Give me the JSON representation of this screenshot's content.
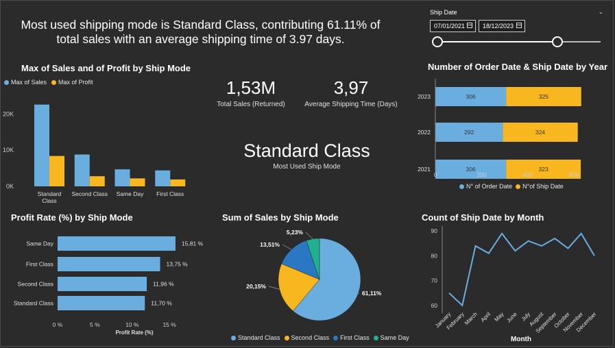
{
  "headline": "Most used shipping mode is Standard Class, contributing 61.11% of total sales with an average shipping time of 3.97 days.",
  "colors": {
    "blue": "#6aaee0",
    "orange": "#f8b71e",
    "darkblue": "#2a78c2",
    "teal": "#1fb08f",
    "bg": "#2b2b2b"
  },
  "slicer": {
    "label": "Ship Date",
    "start": "07/01/2021",
    "end": "18/12/2023",
    "chevron_icon": "chevron-down-icon",
    "calendar_icon": "calendar-icon"
  },
  "kpis": {
    "sales_value": "1,53M",
    "sales_label": "Total Sales (Returned)",
    "ship_time_value": "3,97",
    "ship_time_label": "Average Shipping Time (Days)",
    "mode_value": "Standard Class",
    "mode_label": "Most Used Ship Mode"
  },
  "chart_data": [
    {
      "id": "max_sales_profit",
      "type": "bar",
      "title": "Max of Sales and of Profit by Ship Mode",
      "categories": [
        "Standard Class",
        "Second Class",
        "Same Day",
        "First Class"
      ],
      "series": [
        {
          "name": "Max of Sales",
          "values": [
            22600,
            8800,
            4700,
            4400
          ],
          "color": "#6aaee0"
        },
        {
          "name": "Max of Profit",
          "values": [
            8400,
            2800,
            2200,
            1900
          ],
          "color": "#f8b71e"
        }
      ],
      "ylim": [
        0,
        25000
      ],
      "yticks": [
        0,
        10000,
        20000
      ],
      "ytick_labels": [
        "0K",
        "10K",
        "20K"
      ],
      "legend": "top-left"
    },
    {
      "id": "order_ship_by_year",
      "type": "bar",
      "orientation": "horizontal-stacked",
      "title": "Number of Order Date & Ship Date by Year",
      "categories": [
        "2023",
        "2022",
        "2021"
      ],
      "series": [
        {
          "name": "N° of Order Date",
          "values": [
            306,
            292,
            306
          ],
          "color": "#6aaee0"
        },
        {
          "name": "N°of Ship Date",
          "values": [
            325,
            324,
            323
          ],
          "color": "#f8b71e"
        }
      ],
      "xlim": [
        0,
        700
      ],
      "xticks": [
        0,
        200,
        400,
        600
      ],
      "legend": "bottom"
    },
    {
      "id": "profit_rate",
      "type": "bar",
      "orientation": "horizontal",
      "title": "Profit Rate (%) by Ship Mode",
      "categories": [
        "Same Day",
        "First Class",
        "Second Class",
        "Standard Class"
      ],
      "values": [
        15.81,
        13.75,
        11.96,
        11.7
      ],
      "value_labels": [
        "15,81 %",
        "13,75 %",
        "11,96 %",
        "11,70 %"
      ],
      "xlim": [
        0,
        16
      ],
      "xticks": [
        0,
        5,
        10,
        15
      ],
      "xtick_labels": [
        "0 %",
        "5 %",
        "10 %",
        "15 %"
      ],
      "xlabel": "Profit Rate (%)",
      "color": "#6aaee0"
    },
    {
      "id": "sales_share",
      "type": "pie",
      "title": "Sum of Sales by Ship Mode",
      "labels": [
        "Standard Class",
        "Second Class",
        "First Class",
        "Same Day"
      ],
      "values": [
        61.11,
        20.15,
        13.51,
        5.23
      ],
      "value_labels": [
        "61,11%",
        "20,15%",
        "13,51%",
        "5,23%"
      ],
      "colors": [
        "#6aaee0",
        "#f8b71e",
        "#2a78c2",
        "#1fb08f"
      ],
      "legend": "bottom"
    },
    {
      "id": "ship_by_month",
      "type": "line",
      "title": "Count of Ship Date by Month",
      "x": [
        "January",
        "February",
        "March",
        "April",
        "May",
        "June",
        "July",
        "August",
        "September",
        "October",
        "November",
        "December"
      ],
      "y": [
        65,
        60,
        84,
        81,
        89,
        82,
        86,
        84,
        87,
        83,
        89,
        80
      ],
      "ylim": [
        58,
        92
      ],
      "yticks": [
        60,
        70,
        80,
        90
      ],
      "xlabel": "Month",
      "color": "#6aaee0"
    }
  ]
}
